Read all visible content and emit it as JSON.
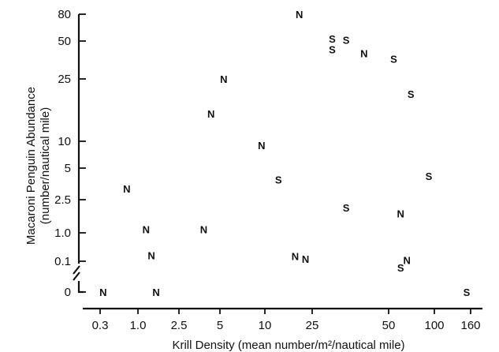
{
  "chart_data": {
    "type": "scatter",
    "title": "",
    "xlabel": "Krill Density (mean number/m²/nautical mile)",
    "ylabel_line1": "Macaroni Penguin Abundance",
    "ylabel_line2": "(number/nautical mile)",
    "x_scale": "log",
    "x_ticks": [
      {
        "value": 0.3,
        "label": "0.3"
      },
      {
        "value": 1.0,
        "label": "1.0"
      },
      {
        "value": 2.5,
        "label": "2.5"
      },
      {
        "value": 5,
        "label": "5"
      },
      {
        "value": 10,
        "label": "10"
      },
      {
        "value": 25,
        "label": "25"
      },
      {
        "value": 50,
        "label": "50"
      },
      {
        "value": 100,
        "label": "100"
      },
      {
        "value": 160,
        "label": "160"
      }
    ],
    "y_ticks": [
      {
        "value": 0,
        "label": "0"
      },
      {
        "value": 0.1,
        "label": "0.1"
      },
      {
        "value": 1.0,
        "label": "1.0"
      },
      {
        "value": 2.5,
        "label": "2.5"
      },
      {
        "value": 5,
        "label": "5"
      },
      {
        "value": 10,
        "label": "10"
      },
      {
        "value": 25,
        "label": "25"
      },
      {
        "value": 50,
        "label": "50"
      },
      {
        "value": 80,
        "label": "80"
      }
    ],
    "axis_break": "y",
    "points": [
      {
        "x": 0.33,
        "y": 0,
        "label": "N"
      },
      {
        "x": 0.7,
        "y": 3.2,
        "label": "N"
      },
      {
        "x": 1.2,
        "y": 1.1,
        "label": "N"
      },
      {
        "x": 1.35,
        "y": 0.16,
        "label": "N"
      },
      {
        "x": 1.5,
        "y": 0,
        "label": "N"
      },
      {
        "x": 3.8,
        "y": 1.1,
        "label": "N"
      },
      {
        "x": 4.3,
        "y": 15,
        "label": "N"
      },
      {
        "x": 5.3,
        "y": 25,
        "label": "N"
      },
      {
        "x": 9.5,
        "y": 9,
        "label": "N"
      },
      {
        "x": 13,
        "y": 3.9,
        "label": "S"
      },
      {
        "x": 18,
        "y": 0.15,
        "label": "N"
      },
      {
        "x": 19.5,
        "y": 80,
        "label": "N"
      },
      {
        "x": 22,
        "y": 0.12,
        "label": "N"
      },
      {
        "x": 30,
        "y": 52,
        "label": "S"
      },
      {
        "x": 30,
        "y": 43,
        "label": "S"
      },
      {
        "x": 34,
        "y": 51,
        "label": "S"
      },
      {
        "x": 34,
        "y": 2.0,
        "label": "S"
      },
      {
        "x": 40,
        "y": 40,
        "label": "N"
      },
      {
        "x": 54,
        "y": 36,
        "label": "S"
      },
      {
        "x": 60,
        "y": 1.7,
        "label": "N"
      },
      {
        "x": 60,
        "y": 0.06,
        "label": "S"
      },
      {
        "x": 66,
        "y": 0.11,
        "label": "N"
      },
      {
        "x": 70,
        "y": 20,
        "label": "S"
      },
      {
        "x": 92,
        "y": 4.2,
        "label": "S"
      },
      {
        "x": 152,
        "y": 0,
        "label": "S"
      }
    ]
  }
}
